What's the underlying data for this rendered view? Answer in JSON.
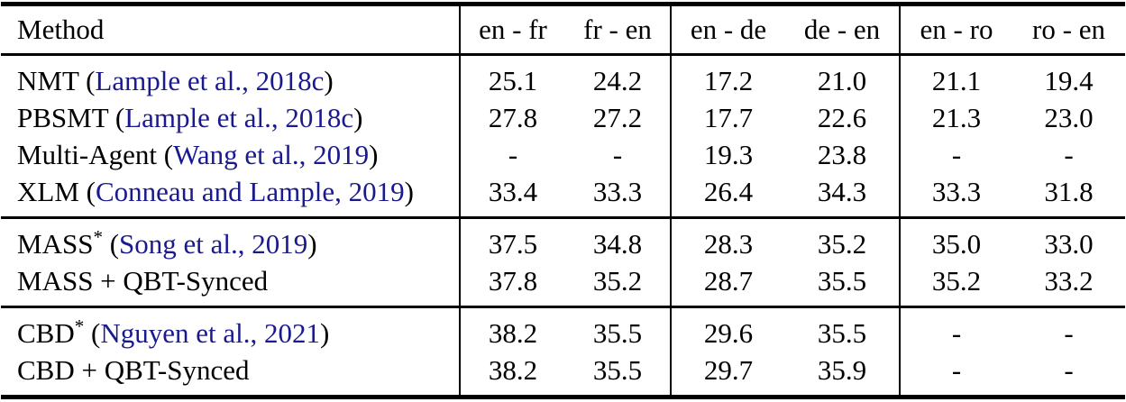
{
  "colors": {
    "background": "#ffffff",
    "text": "#000000",
    "rule": "#000000",
    "citation_link": "#1a1a8e"
  },
  "table": {
    "columns": [
      {
        "id": "method",
        "label": "Method"
      },
      {
        "id": "en-fr",
        "label": "en - fr"
      },
      {
        "id": "fr-en",
        "label": "fr - en"
      },
      {
        "id": "en-de",
        "label": "en - de"
      },
      {
        "id": "de-en",
        "label": "de - en"
      },
      {
        "id": "en-ro",
        "label": "en - ro"
      },
      {
        "id": "ro-en",
        "label": "ro - en"
      }
    ],
    "sections": [
      {
        "rows": [
          {
            "method": "NMT",
            "sup": "",
            "citation": "Lample et al., 2018c",
            "values": [
              "25.1",
              "24.2",
              "17.2",
              "21.0",
              "21.1",
              "19.4"
            ]
          },
          {
            "method": "PBSMT",
            "sup": "",
            "citation": "Lample et al., 2018c",
            "values": [
              "27.8",
              "27.2",
              "17.7",
              "22.6",
              "21.3",
              "23.0"
            ]
          },
          {
            "method": "Multi-Agent",
            "sup": "",
            "citation": "Wang et al., 2019",
            "values": [
              "-",
              "-",
              "19.3",
              "23.8",
              "-",
              "-"
            ]
          },
          {
            "method": "XLM",
            "sup": "",
            "citation": "Conneau and Lample, 2019",
            "values": [
              "33.4",
              "33.3",
              "26.4",
              "34.3",
              "33.3",
              "31.8"
            ]
          }
        ]
      },
      {
        "rows": [
          {
            "method": "MASS",
            "sup": "*",
            "citation": "Song et al., 2019",
            "values": [
              "37.5",
              "34.8",
              "28.3",
              "35.2",
              "35.0",
              "33.0"
            ]
          },
          {
            "method": "MASS + QBT-Synced",
            "sup": "",
            "citation": null,
            "values": [
              "37.8",
              "35.2",
              "28.7",
              "35.5",
              "35.2",
              "33.2"
            ]
          }
        ]
      },
      {
        "rows": [
          {
            "method": "CBD",
            "sup": "*",
            "citation": "Nguyen et al., 2021",
            "values": [
              "38.2",
              "35.5",
              "29.6",
              "35.5",
              "-",
              "-"
            ]
          },
          {
            "method": "CBD + QBT-Synced",
            "sup": "",
            "citation": null,
            "values": [
              "38.2",
              "35.5",
              "29.7",
              "35.9",
              "-",
              "-"
            ]
          }
        ]
      }
    ]
  }
}
